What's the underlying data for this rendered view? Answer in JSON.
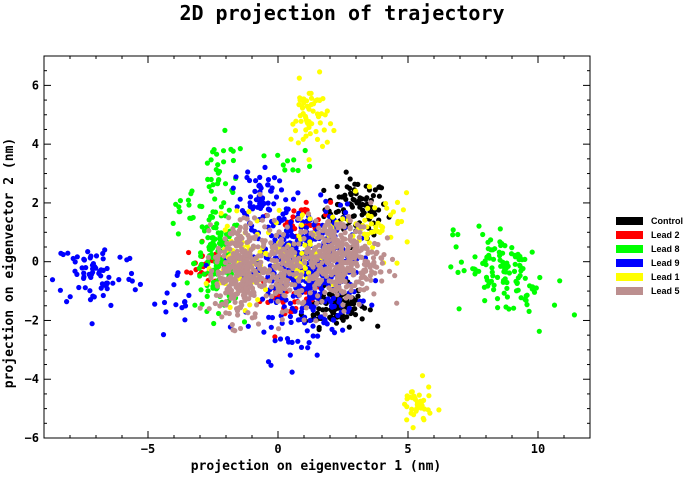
{
  "chart_data": {
    "type": "scatter",
    "title": "2D projection of trajectory",
    "xlabel": "projection on eigenvector 1 (nm)",
    "ylabel": "projection on eigenvector 2 (nm)",
    "xlim": [
      -9,
      12
    ],
    "ylim": [
      -6,
      7
    ],
    "xticks": [
      -5,
      0,
      5,
      10
    ],
    "yticks": [
      -6,
      -4,
      -2,
      0,
      2,
      4,
      6
    ],
    "grid": false,
    "legend_position": "right",
    "series": [
      {
        "name": "Control",
        "color": "#000000",
        "clusters": [
          {
            "center": [
              3.0,
              1.8
            ],
            "spread": [
              0.6,
              0.5
            ],
            "count": 90
          },
          {
            "center": [
              2.2,
              -1.5
            ],
            "spread": [
              0.6,
              0.35
            ],
            "count": 110
          }
        ]
      },
      {
        "name": "Lead 2",
        "color": "#ff0000",
        "clusters": [
          {
            "center": [
              -2.9,
              -0.1
            ],
            "spread": [
              0.3,
              0.35
            ],
            "count": 25
          },
          {
            "center": [
              1.0,
              1.5
            ],
            "spread": [
              0.5,
              0.3
            ],
            "count": 25
          },
          {
            "center": [
              0.5,
              -1.2
            ],
            "spread": [
              0.6,
              0.4
            ],
            "count": 30
          }
        ]
      },
      {
        "name": "Lead 8",
        "color": "#00ff00",
        "clusters": [
          {
            "center": [
              -2.3,
              0.0
            ],
            "spread": [
              0.45,
              0.8
            ],
            "count": 140
          },
          {
            "center": [
              -2.2,
              3.0
            ],
            "spread": [
              0.5,
              0.6
            ],
            "count": 30
          },
          {
            "center": [
              -3.4,
              1.8
            ],
            "spread": [
              0.4,
              0.5
            ],
            "count": 15
          },
          {
            "center": [
              0.6,
              3.4
            ],
            "spread": [
              0.4,
              0.2
            ],
            "count": 10
          },
          {
            "center": [
              8.6,
              -0.3
            ],
            "spread": [
              1.0,
              0.5
            ],
            "count": 120,
            "tilt": -0.62
          }
        ]
      },
      {
        "name": "Lead 9",
        "color": "#0000ff",
        "clusters": [
          {
            "center": [
              -7.0,
              -0.4
            ],
            "spread": [
              0.8,
              0.6
            ],
            "count": 70
          },
          {
            "center": [
              -3.8,
              -1.5
            ],
            "spread": [
              0.5,
              0.6
            ],
            "count": 15
          },
          {
            "center": [
              -0.7,
              2.4
            ],
            "spread": [
              0.35,
              0.45
            ],
            "count": 50
          },
          {
            "center": [
              1.0,
              -0.3
            ],
            "spread": [
              1.0,
              1.1
            ],
            "count": 450
          }
        ]
      },
      {
        "name": "Lead 1",
        "color": "#ffff00",
        "clusters": [
          {
            "center": [
              1.2,
              4.9
            ],
            "spread": [
              0.35,
              0.6
            ],
            "count": 60
          },
          {
            "center": [
              3.8,
              1.2
            ],
            "spread": [
              0.7,
              0.5
            ],
            "count": 50
          },
          {
            "center": [
              5.3,
              -4.9
            ],
            "spread": [
              0.3,
              0.35
            ],
            "count": 40
          },
          {
            "center": [
              -1.3,
              -0.1
            ],
            "spread": [
              0.6,
              0.7
            ],
            "count": 70
          },
          {
            "center": [
              1.0,
              0.5
            ],
            "spread": [
              0.6,
              0.7
            ],
            "count": 50
          }
        ]
      },
      {
        "name": "Lead 5",
        "color": "#bc8f8f",
        "clusters": [
          {
            "center": [
              -1.5,
              -0.3
            ],
            "spread": [
              0.45,
              0.85
            ],
            "count": 300
          },
          {
            "center": [
              2.3,
              0.1
            ],
            "spread": [
              0.8,
              0.7
            ],
            "count": 360
          },
          {
            "center": [
              0.1,
              -0.2
            ],
            "spread": [
              0.4,
              0.7
            ],
            "count": 120
          }
        ]
      }
    ]
  }
}
